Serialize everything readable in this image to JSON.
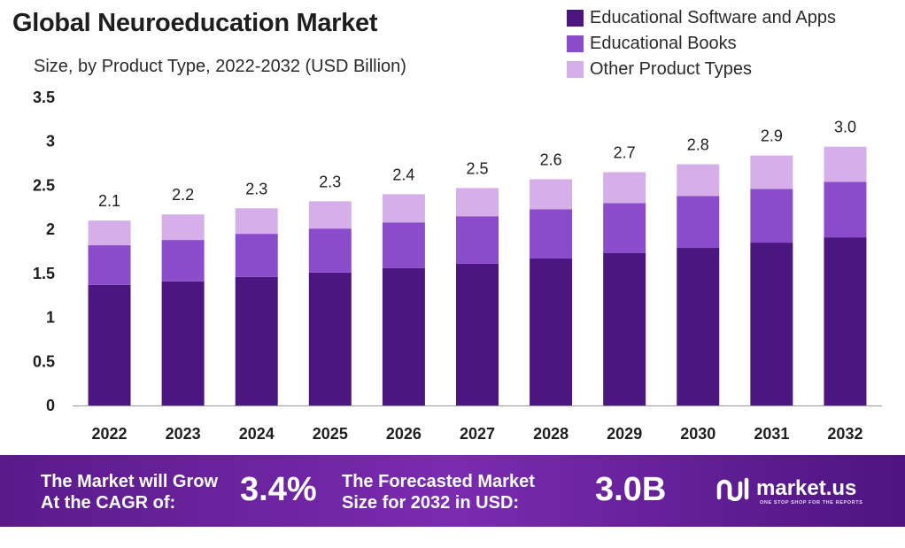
{
  "title": "Global Neuroeducation Market",
  "subtitle": "Size, by Product Type, 2022-2032 (USD Billion)",
  "colors": {
    "software": "#4c1681",
    "books": "#8b4ccc",
    "other": "#d6aee9",
    "footer": "#6a23a0"
  },
  "chart_data": {
    "type": "bar",
    "stacked": true,
    "categories": [
      "2022",
      "2023",
      "2024",
      "2025",
      "2026",
      "2027",
      "2028",
      "2029",
      "2030",
      "2031",
      "2032"
    ],
    "series": [
      {
        "name": "Educational Software and Apps",
        "values": [
          1.37,
          1.41,
          1.46,
          1.51,
          1.56,
          1.61,
          1.67,
          1.73,
          1.79,
          1.85,
          1.91
        ]
      },
      {
        "name": "Educational Books",
        "values": [
          0.45,
          0.47,
          0.49,
          0.5,
          0.52,
          0.54,
          0.56,
          0.57,
          0.59,
          0.61,
          0.63
        ]
      },
      {
        "name": "Other Product Types",
        "values": [
          0.28,
          0.29,
          0.29,
          0.31,
          0.32,
          0.32,
          0.34,
          0.35,
          0.36,
          0.38,
          0.4
        ]
      }
    ],
    "totals_labels": [
      "2.1",
      "2.2",
      "2.3",
      "2.3",
      "2.4",
      "2.5",
      "2.6",
      "2.7",
      "2.8",
      "2.9",
      "3.0"
    ],
    "yticks": [
      "0",
      "0.5",
      "1",
      "1.5",
      "2",
      "2.5",
      "3",
      "3.5"
    ],
    "ylim": [
      0,
      3.5
    ],
    "title": "Global Neuroeducation Market",
    "xlabel": "",
    "ylabel": "",
    "legend_position": "top-right"
  },
  "footer": {
    "cagr_label": [
      "The Market will Grow",
      "At the CAGR of:"
    ],
    "cagr_value": "3.4%",
    "forecast_label": [
      "The Forecasted Market",
      "Size for 2032 in USD:"
    ],
    "forecast_value": "3.0B",
    "brand": "market.us",
    "tagline": "ONE STOP SHOP FOR THE REPORTS"
  }
}
